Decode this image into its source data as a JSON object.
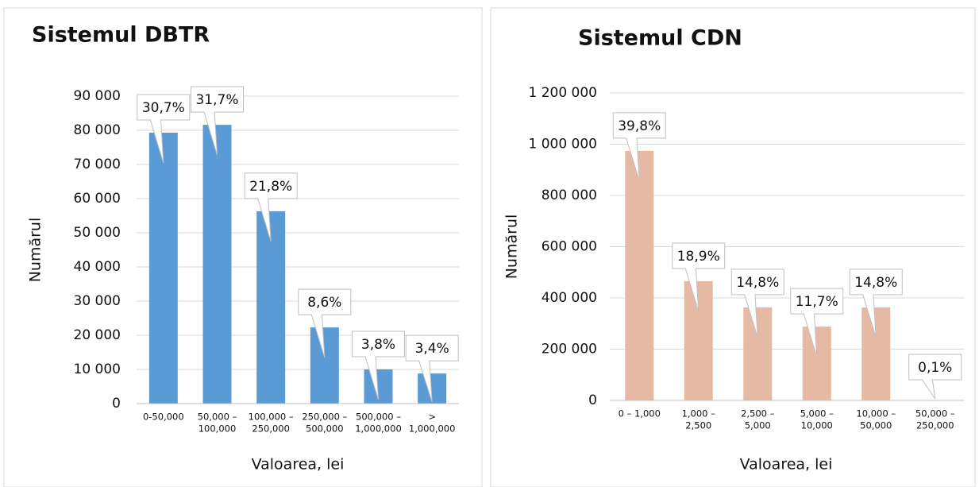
{
  "chart_data": [
    {
      "type": "bar",
      "title": "Sistemul DBTR",
      "x_label": "Valoarea, lei",
      "y_label": "Numărul",
      "color": "#5b9bd5",
      "categories": [
        [
          "0-50,000"
        ],
        [
          "50,000 –",
          "100,000"
        ],
        [
          "100,000 –",
          "250,000"
        ],
        [
          "250,000 –",
          "500,000"
        ],
        [
          "500,000 –",
          "1,000,000"
        ],
        [
          ">",
          "1,000,000"
        ]
      ],
      "values": [
        79300,
        81600,
        56300,
        22300,
        10000,
        8800
      ],
      "annotations": [
        "30,7%",
        "31,7%",
        "21,8%",
        "8,6%",
        "3,8%",
        "3,4%"
      ],
      "ylim": [
        0,
        90000
      ],
      "yticks": [
        0,
        {
          "value": 10000,
          "label": "10 000"
        },
        {
          "value": 20000,
          "label": "20 000"
        },
        {
          "value": 30000,
          "label": "30 000"
        },
        {
          "value": 40000,
          "label": "40 000"
        },
        {
          "value": 50000,
          "label": "50 000"
        },
        {
          "value": 60000,
          "label": "60 000"
        },
        {
          "value": 70000,
          "label": "70 000"
        },
        {
          "value": 80000,
          "label": "80 000"
        },
        {
          "value": 90000,
          "label": "90 000"
        }
      ],
      "grid": true
    },
    {
      "type": "bar",
      "title": "Sistemul CDN",
      "x_label": "Valoarea, lei",
      "y_label": "Numărul",
      "color": "#e6b9a5",
      "categories": [
        [
          "0 – 1,000"
        ],
        [
          "1,000 –",
          "2,500"
        ],
        [
          "2,500 –",
          "5,000"
        ],
        [
          "5,000 –",
          "10,000"
        ],
        [
          "10,000 –",
          "50,000"
        ],
        [
          "50,000 –",
          "250,000"
        ]
      ],
      "values": [
        974000,
        465000,
        363000,
        288000,
        363000,
        1500
      ],
      "annotations": [
        "39,8%",
        "18,9%",
        "14,8%",
        "11,7%",
        "14,8%",
        "0,1%"
      ],
      "ylim": [
        0,
        1200000
      ],
      "yticks": [
        0,
        {
          "value": 200000,
          "label": "200 000"
        },
        {
          "value": 400000,
          "label": "400 000"
        },
        {
          "value": 600000,
          "label": "600 000"
        },
        {
          "value": 800000,
          "label": "800 000"
        },
        {
          "value": 1000000,
          "label": "1 000 000"
        },
        {
          "value": 1200000,
          "label": "1 200 000"
        }
      ],
      "grid": true
    }
  ]
}
